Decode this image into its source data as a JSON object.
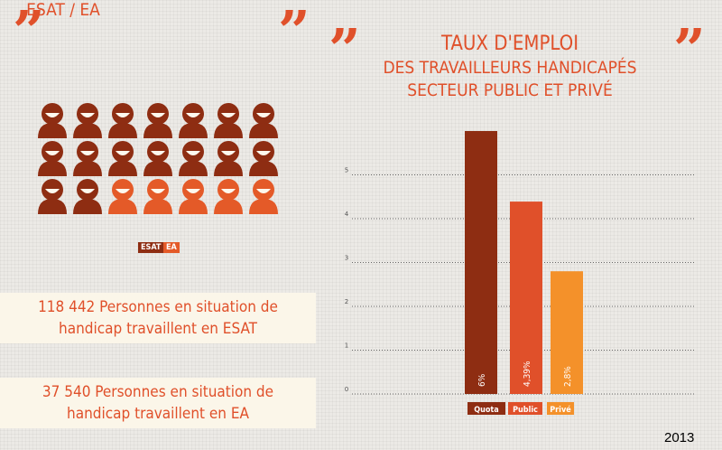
{
  "left": {
    "quote_mark": "”",
    "title": "ESAT / EA",
    "people": {
      "rows": 3,
      "cols": 7,
      "esat_color": "#8e2d12",
      "ea_color": "#e45a28",
      "ea_in_last_row": 5
    },
    "legend": [
      {
        "label": "ESAT",
        "color": "#8e2d12"
      },
      {
        "label": "EA",
        "color": "#e45a28"
      }
    ],
    "stats": [
      {
        "line1": "118 442 Personnes en situation de",
        "line2": "handicap travaillent en ESAT"
      },
      {
        "line1": "37 540 Personnes en situation de",
        "line2": "handicap travaillent en EA"
      }
    ]
  },
  "right": {
    "quote_mark": "”",
    "title_line1": "TAUX D'EMPLOI",
    "title_line2": "DES TRAVAILLEURS HANDICAPÉS",
    "title_line3": "SECTEUR PUBLIC ET PRIVÉ"
  },
  "chart_data": {
    "type": "bar",
    "categories": [
      "Quota",
      "Public",
      "Privé"
    ],
    "values": [
      6,
      4.39,
      2.8
    ],
    "data_labels": [
      "6%",
      "4,39%",
      "2,8%"
    ],
    "colors": [
      "#8e2d12",
      "#e0502a",
      "#f4912a"
    ],
    "ylim": [
      0,
      6
    ],
    "yticks": [
      0,
      1,
      2,
      3,
      4,
      5
    ],
    "grid": true,
    "legend_position": "bottom"
  },
  "year": "2013"
}
